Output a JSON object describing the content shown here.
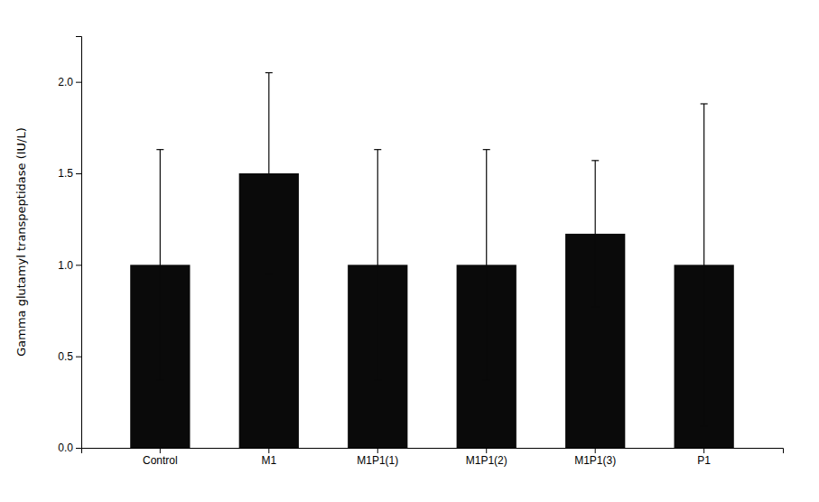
{
  "chart_data": {
    "type": "bar",
    "categories": [
      "Control",
      "M1",
      "M1P1(1)",
      "M1P1(2)",
      "M1P1(3)",
      "P1"
    ],
    "values": [
      1.0,
      1.5,
      1.0,
      1.0,
      1.17,
      1.0
    ],
    "errors_upper": [
      0.63,
      0.55,
      0.63,
      0.63,
      0.4,
      0.88
    ],
    "errors_lower": [
      0.63,
      0.55,
      0.63,
      0.63,
      0.4,
      0.88
    ],
    "color": "#0a0a0a",
    "ylabel": "Gamma glutamyl transpeptidase (IU/L)",
    "ylim": [
      0.0,
      2.25
    ],
    "yticks": [
      {
        "value": 0.0,
        "label": "0.0"
      },
      0.5,
      {
        "value": 1.0,
        "label": "1.0"
      },
      1.5,
      {
        "value": 2.0,
        "label": "2.0"
      }
    ],
    "grid": false
  }
}
